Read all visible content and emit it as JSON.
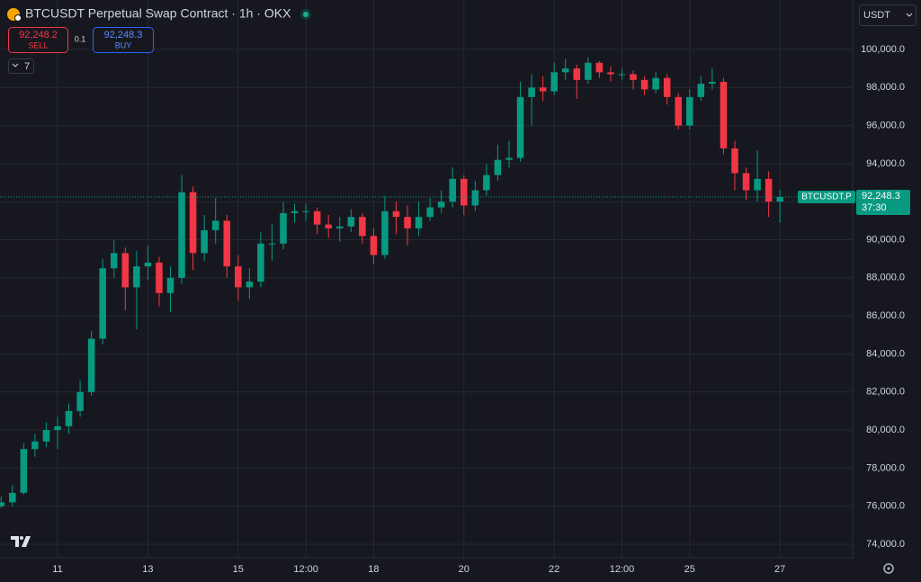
{
  "toolbar": {
    "title": "BTCUSDT Perpetual Swap Contract · 1h · OKX",
    "sell_price": "92,248.2",
    "sell_label": "SELL",
    "spread": "0.1",
    "buy_price": "92,248.3",
    "buy_label": "BUY",
    "indicators": "7",
    "currency": "USDT"
  },
  "chart_data": {
    "type": "candlestick",
    "x": [
      9.75,
      10,
      10.25,
      10.5,
      10.75,
      11,
      11.25,
      11.5,
      11.75,
      12,
      12.25,
      12.5,
      12.75,
      13,
      13.25,
      13.5,
      13.75,
      14,
      14.25,
      14.5,
      14.75,
      15,
      15.25,
      15.5,
      15.75,
      16,
      16.25,
      16.5,
      16.75,
      17,
      17.25,
      17.5,
      17.75,
      18,
      18.25,
      18.5,
      18.75,
      19,
      19.25,
      19.5,
      19.75,
      20,
      20.25,
      20.5,
      20.75,
      21,
      21.25,
      21.5,
      21.75,
      22,
      22.25,
      22.5,
      22.75,
      23,
      23.25,
      23.5,
      23.75,
      24,
      24.25,
      24.5,
      24.75,
      25,
      25.25,
      25.5,
      25.75,
      26,
      26.25,
      26.5,
      26.75,
      27
    ],
    "open": [
      76000,
      76200,
      76700,
      79000,
      79400,
      80000,
      80200,
      81000,
      82000,
      84800,
      88500,
      89300,
      87500,
      88600,
      88800,
      87200,
      88000,
      92500,
      89300,
      90500,
      91000,
      88600,
      87500,
      87800,
      89800,
      89800,
      91400,
      91500,
      91500,
      90800,
      90600,
      90700,
      91200,
      90200,
      89200,
      91500,
      91200,
      90600,
      91200,
      91700,
      92000,
      93200,
      91800,
      92600,
      93400,
      94200,
      94300,
      97500,
      98000,
      97800,
      98800,
      99000,
      98400,
      99300,
      98800,
      98700,
      98700,
      98400,
      97900,
      98500,
      97500,
      96000,
      97500,
      98200,
      98300,
      94800,
      93500,
      92600,
      93200,
      92000
    ],
    "high": [
      76500,
      77100,
      79300,
      79800,
      80400,
      80700,
      81400,
      82600,
      85200,
      89000,
      90000,
      89600,
      89400,
      89700,
      89100,
      88600,
      93400,
      92800,
      91300,
      92200,
      91300,
      89200,
      88500,
      90400,
      90800,
      92000,
      91900,
      91900,
      91700,
      91300,
      91200,
      91600,
      91400,
      90600,
      92300,
      92000,
      91800,
      92000,
      92200,
      92600,
      93800,
      93400,
      93100,
      94000,
      95000,
      95200,
      98300,
      98700,
      98600,
      99300,
      99500,
      99200,
      99600,
      99400,
      99100,
      99000,
      98900,
      98600,
      98800,
      98700,
      97700,
      97900,
      98600,
      99000,
      98500,
      95200,
      93800,
      94700,
      93600,
      92600
    ],
    "low": [
      75900,
      76000,
      76600,
      78600,
      79100,
      79000,
      79800,
      80700,
      81800,
      84500,
      88000,
      86300,
      85300,
      87900,
      86500,
      86200,
      87700,
      88400,
      88900,
      89800,
      88000,
      86800,
      86900,
      87500,
      88900,
      89500,
      90900,
      91000,
      90300,
      90100,
      89900,
      90400,
      89800,
      88700,
      89000,
      90300,
      89700,
      90200,
      91000,
      91400,
      91700,
      91300,
      91500,
      92300,
      93100,
      93800,
      94100,
      96000,
      97300,
      97600,
      98400,
      97400,
      98200,
      98500,
      98300,
      98400,
      97900,
      97600,
      97700,
      97100,
      95800,
      95800,
      97300,
      97900,
      94500,
      92600,
      92100,
      92000,
      91200,
      90900
    ],
    "close": [
      76200,
      76700,
      79000,
      79400,
      80000,
      80200,
      81000,
      82000,
      84800,
      88500,
      89300,
      87500,
      88600,
      88800,
      87200,
      88000,
      92500,
      89300,
      90500,
      91000,
      88600,
      87500,
      87800,
      89800,
      89800,
      91400,
      91500,
      91500,
      90800,
      90600,
      90700,
      91200,
      90200,
      89200,
      91500,
      91200,
      90600,
      91200,
      91700,
      92000,
      93200,
      91800,
      92600,
      93400,
      94200,
      94300,
      97500,
      98000,
      97800,
      98800,
      99000,
      98400,
      99300,
      98800,
      98700,
      98700,
      98400,
      97900,
      98500,
      97500,
      96000,
      97500,
      98200,
      98300,
      94800,
      93500,
      92600,
      93200,
      92000,
      92248.3
    ],
    "up_color": "#089981",
    "down_color": "#f23645",
    "xlim": [
      9.725,
      28.61
    ],
    "ylim": [
      73290,
      102600
    ],
    "xticks": [
      11,
      13,
      15,
      {
        "value": 16.5,
        "label": "12:00"
      },
      18,
      20,
      22,
      {
        "value": 23.5,
        "label": "12:00"
      },
      25,
      27
    ],
    "yticks": [
      {
        "value": 74000,
        "label": "74,000.0"
      },
      {
        "value": 76000,
        "label": "76,000.0"
      },
      {
        "value": 78000,
        "label": "78,000.0"
      },
      {
        "value": 80000,
        "label": "80,000.0"
      },
      {
        "value": 82000,
        "label": "82,000.0"
      },
      {
        "value": 84000,
        "label": "84,000.0"
      },
      {
        "value": 86000,
        "label": "86,000.0"
      },
      {
        "value": 88000,
        "label": "88,000.0"
      },
      {
        "value": 90000,
        "label": "90,000.0"
      },
      {
        "value": 92000,
        "label": "92,000.0"
      },
      {
        "value": 94000,
        "label": "94,000.0"
      },
      {
        "value": 96000,
        "label": "96,000.0"
      },
      {
        "value": 98000,
        "label": "98,000.0"
      },
      {
        "value": 100000,
        "label": "100,000.0"
      }
    ],
    "grid": true,
    "last_price": {
      "value": 92248.3,
      "label": "92,248.3"
    },
    "last_symbol": "BTCUSDT.P",
    "countdown": "37:30"
  }
}
